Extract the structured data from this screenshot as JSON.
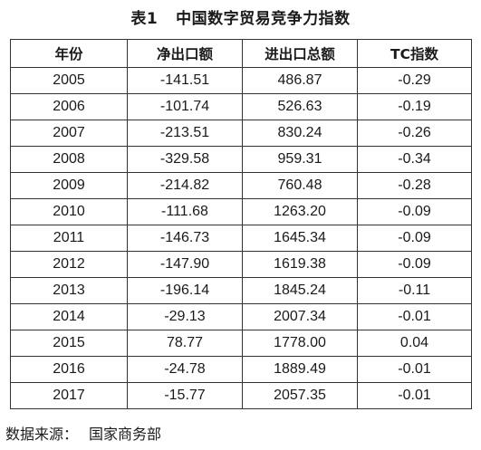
{
  "table_title": {
    "number": "表1",
    "text": "中国数字贸易竞争力指数"
  },
  "columns": [
    "年份",
    "净出口额",
    "进出口总额",
    "TC指数"
  ],
  "rows": [
    [
      "2005",
      "-141.51",
      "486.87",
      "-0.29"
    ],
    [
      "2006",
      "-101.74",
      "526.63",
      "-0.19"
    ],
    [
      "2007",
      "-213.51",
      "830.24",
      "-0.26"
    ],
    [
      "2008",
      "-329.58",
      "959.31",
      "-0.34"
    ],
    [
      "2009",
      "-214.82",
      "760.48",
      "-0.28"
    ],
    [
      "2010",
      "-111.68",
      "1263.20",
      "-0.09"
    ],
    [
      "2011",
      "-146.73",
      "1645.34",
      "-0.09"
    ],
    [
      "2012",
      "-147.90",
      "1619.38",
      "-0.09"
    ],
    [
      "2013",
      "-196.14",
      "1845.24",
      "-0.11"
    ],
    [
      "2014",
      "-29.13",
      "2007.34",
      "-0.01"
    ],
    [
      "2015",
      "78.77",
      "1778.00",
      "0.04"
    ],
    [
      "2016",
      "-24.78",
      "1889.49",
      "-0.01"
    ],
    [
      "2017",
      "-15.77",
      "2057.35",
      "-0.01"
    ]
  ],
  "source": {
    "label": "数据来源：",
    "value": "国家商务部"
  }
}
